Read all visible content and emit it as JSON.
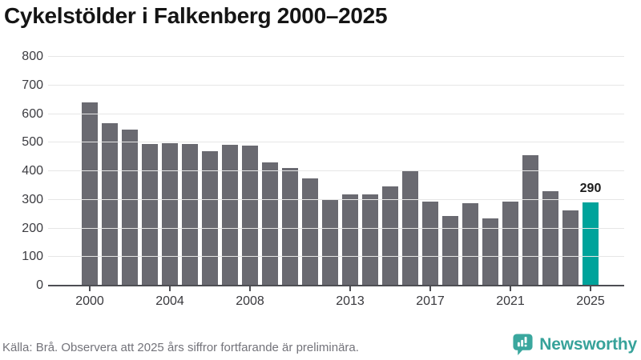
{
  "title": "Cykelstölder i Falkenberg 2000–2025",
  "footer": {
    "source_note": "Källa: Brå. Observera att 2025 års siffror fortfarande är preliminära.",
    "brand": "Newsworthy"
  },
  "chart_data": {
    "type": "bar",
    "title": "Cykelstölder i Falkenberg 2000–2025",
    "categories": [
      "2000",
      "2001",
      "2002",
      "2003",
      "2004",
      "2005",
      "2006",
      "2007",
      "2008",
      "2009",
      "2010",
      "2011",
      "2012",
      "2013",
      "2014",
      "2015",
      "2016",
      "2017",
      "2018",
      "2019",
      "2020",
      "2021",
      "2022",
      "2023",
      "2024",
      "2025"
    ],
    "values": [
      641,
      568,
      546,
      496,
      497,
      496,
      471,
      493,
      489,
      430,
      411,
      374,
      298,
      319,
      318,
      348,
      399,
      294,
      243,
      289,
      235,
      295,
      456,
      331,
      264,
      290
    ],
    "highlight_index": 25,
    "highlight_label": "290",
    "x_tick_labels": [
      "2000",
      "2004",
      "2008",
      "2013",
      "2017",
      "2021",
      "2025"
    ],
    "y_ticks": [
      0,
      100,
      200,
      300,
      400,
      500,
      600,
      700,
      800
    ],
    "ylim": [
      0,
      800
    ],
    "xlabel": "",
    "ylabel": "",
    "grid": "horizontal",
    "legend": "none",
    "colors": {
      "bar": "#6a6a71",
      "highlight": "#00a39b",
      "logo_teal": "#3aa79e"
    }
  }
}
